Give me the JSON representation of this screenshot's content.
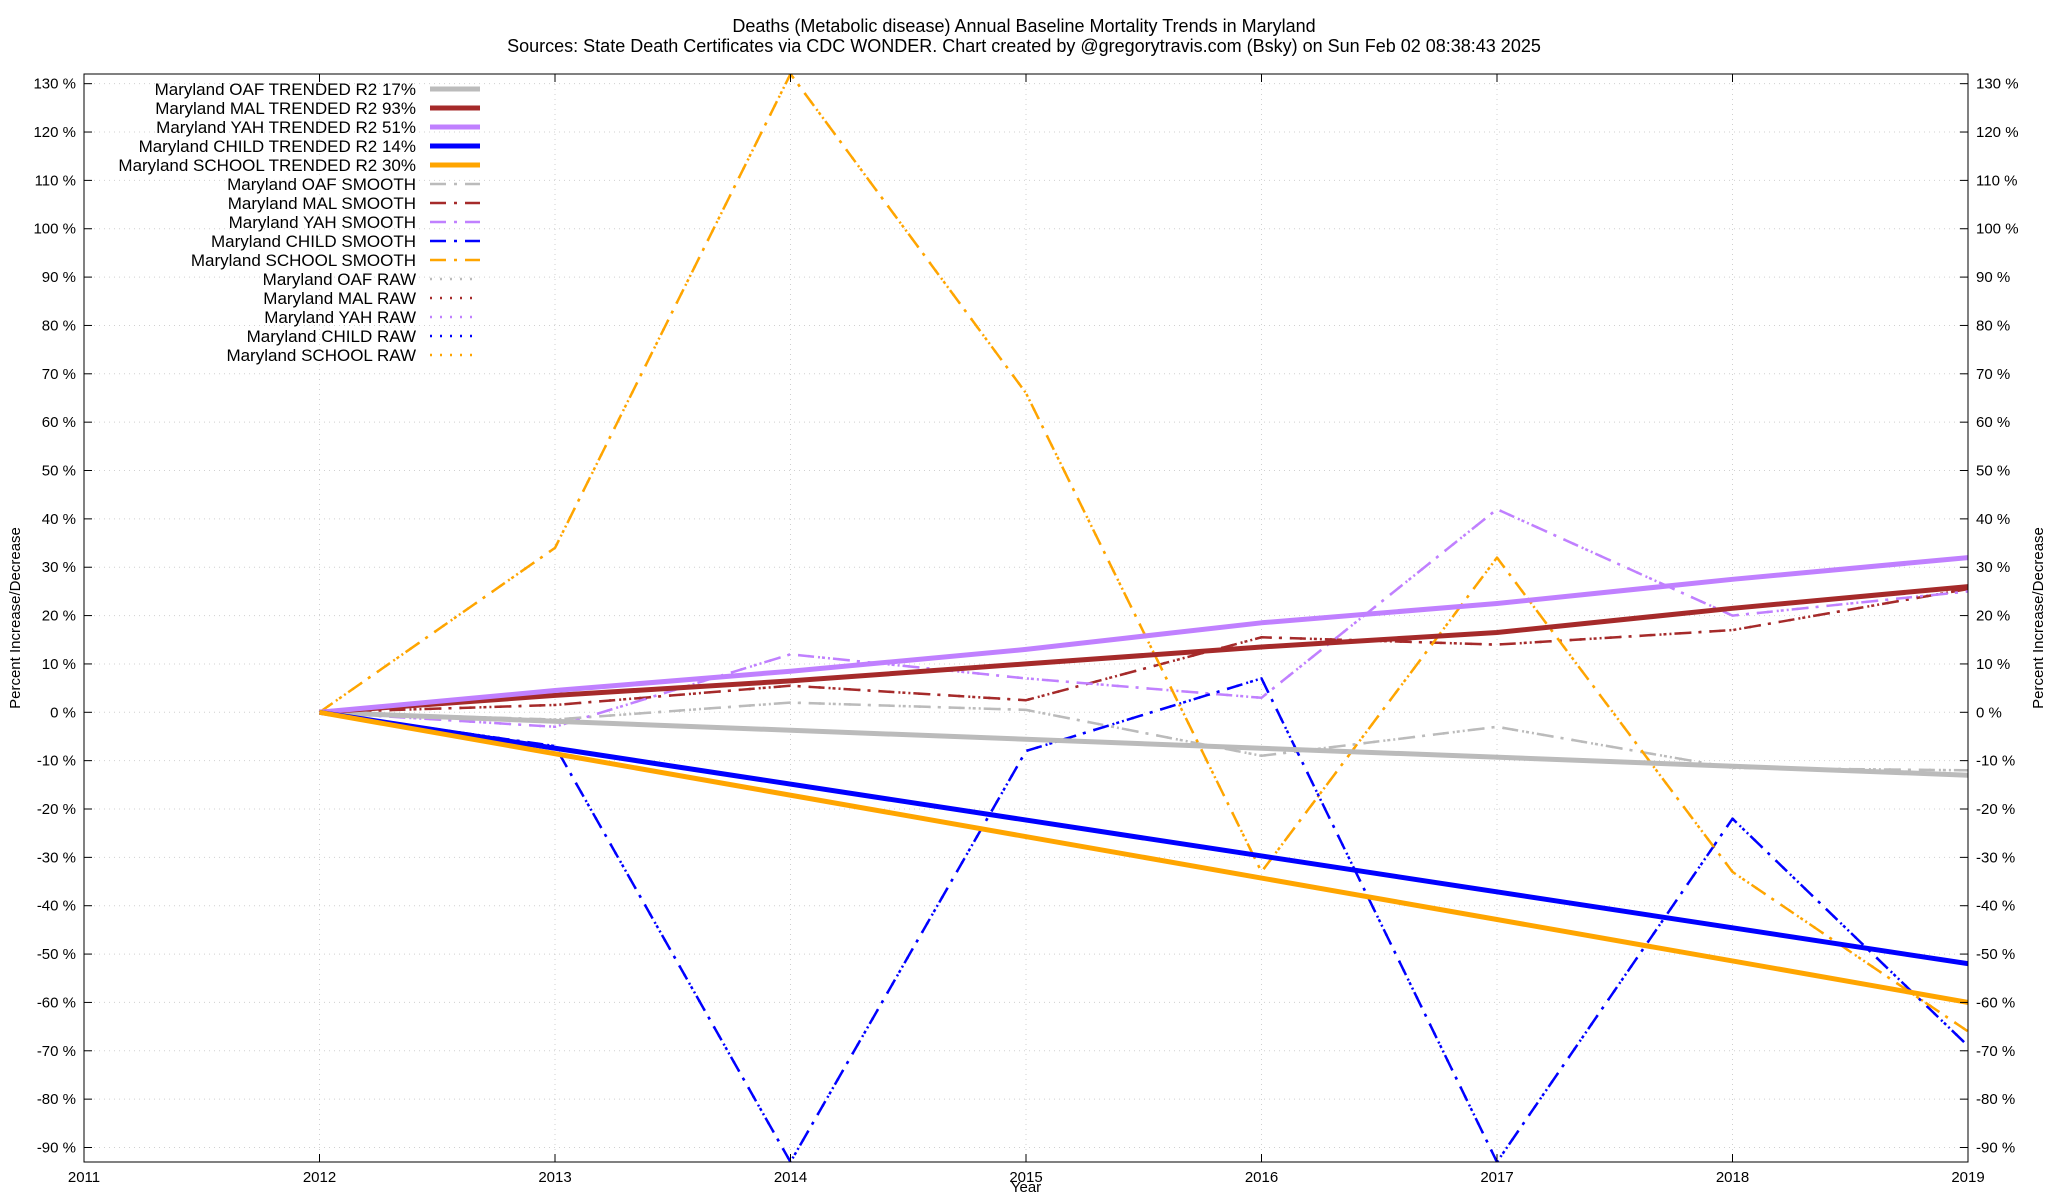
{
  "title_line1": "Deaths (Metabolic disease)  Annual Baseline Mortality Trends in Maryland",
  "title_line2": "Sources: State Death Certificates via CDC WONDER.               Chart created by @gregorytravis.com (Bsky) on Sun Feb 02 08:38:43 2025",
  "chart_data": {
    "type": "line",
    "xlabel": "Year",
    "ylabel": "Percent Increase/Decrease",
    "ylabel_right": "Percent Increase/Decrease",
    "xlim": [
      2011,
      2019
    ],
    "ylim": [
      -93,
      132
    ],
    "grid": true,
    "legend_position": "top-left",
    "x_ticks": [
      2011,
      2012,
      2013,
      2014,
      2015,
      2016,
      2017,
      2018,
      2019
    ],
    "x_tick_labels": [
      "2011",
      "2012",
      "2013",
      "2014",
      "2015",
      "2016",
      "2017",
      "2018",
      "2019"
    ],
    "y_ticks": [
      -90,
      -80,
      -70,
      -60,
      -50,
      -40,
      -30,
      -20,
      -10,
      0,
      10,
      20,
      30,
      40,
      50,
      60,
      70,
      80,
      90,
      100,
      110,
      120,
      130
    ],
    "y_tick_labels": [
      "-90 %",
      "-80 %",
      "-70 %",
      "-60 %",
      "-50 %",
      "-40 %",
      "-30 %",
      "-20 %",
      "-10 %",
      "0 %",
      "10 %",
      "20 %",
      "30 %",
      "40 %",
      "50 %",
      "60 %",
      "70 %",
      "80 %",
      "90 %",
      "100 %",
      "110 %",
      "120 %",
      "130 %"
    ],
    "series": [
      {
        "name": "Maryland OAF TRENDED R2  17%",
        "style": "trend",
        "color": "#bbbbbb",
        "x": [
          2012,
          2019
        ],
        "values": [
          0,
          -13
        ]
      },
      {
        "name": "Maryland MAL TRENDED R2  93%",
        "style": "trend",
        "color": "#a52a2a",
        "x": [
          2012,
          2013,
          2014,
          2015,
          2016,
          2017,
          2018,
          2019
        ],
        "values": [
          0,
          3.5,
          6.5,
          10,
          13.5,
          16.5,
          21.5,
          26
        ]
      },
      {
        "name": "Maryland YAH TRENDED R2  51%",
        "style": "trend",
        "color": "#c080ff",
        "x": [
          2012,
          2013,
          2014,
          2015,
          2016,
          2017,
          2018,
          2019
        ],
        "values": [
          0,
          4.5,
          8.5,
          13,
          18.5,
          22.5,
          27.5,
          32
        ]
      },
      {
        "name": "Maryland CHILD TRENDED R2  14%",
        "style": "trend",
        "color": "#0000ff",
        "x": [
          2012,
          2019
        ],
        "values": [
          0,
          -52
        ]
      },
      {
        "name": "Maryland SCHOOL TRENDED R2  30%",
        "style": "trend",
        "color": "#ffa500",
        "x": [
          2012,
          2019
        ],
        "values": [
          0,
          -60
        ]
      },
      {
        "name": "Maryland OAF SMOOTH",
        "style": "smooth",
        "color": "#bbbbbb",
        "x": [
          2012,
          2013,
          2014,
          2015,
          2016,
          2017,
          2018,
          2019
        ],
        "values": [
          0,
          -1.5,
          2,
          0.5,
          -9,
          -3,
          -11.5,
          -12
        ]
      },
      {
        "name": "Maryland MAL SMOOTH",
        "style": "smooth",
        "color": "#a52a2a",
        "x": [
          2012,
          2013,
          2014,
          2015,
          2016,
          2017,
          2018,
          2019
        ],
        "values": [
          0,
          1.5,
          5.5,
          2.5,
          15.5,
          14,
          17,
          25.5
        ]
      },
      {
        "name": "Maryland YAH SMOOTH",
        "style": "smooth",
        "color": "#c080ff",
        "x": [
          2012,
          2013,
          2014,
          2015,
          2016,
          2017,
          2018,
          2019
        ],
        "values": [
          0,
          -3,
          12,
          7,
          3,
          42,
          20,
          25
        ]
      },
      {
        "name": "Maryland CHILD SMOOTH",
        "style": "smooth",
        "color": "#0000ff",
        "x": [
          2012,
          2013,
          2014,
          2015,
          2016,
          2017,
          2018,
          2019
        ],
        "values": [
          0,
          -7,
          -93,
          -8,
          7,
          -93,
          -22,
          -69
        ]
      },
      {
        "name": "Maryland SCHOOL SMOOTH",
        "style": "smooth",
        "color": "#ffa500",
        "x": [
          2012,
          2013,
          2014,
          2015,
          2016,
          2017,
          2018,
          2019
        ],
        "values": [
          0,
          34,
          132,
          66,
          -33,
          32,
          -33,
          -66
        ]
      },
      {
        "name": "Maryland OAF RAW",
        "style": "raw",
        "color": "#bbbbbb",
        "x": [
          2012,
          2013,
          2014,
          2015,
          2016,
          2017,
          2018,
          2019
        ],
        "values": [
          0,
          -1.5,
          2,
          0.5,
          -9,
          -3,
          -11.5,
          -12
        ]
      },
      {
        "name": "Maryland MAL RAW",
        "style": "raw",
        "color": "#a52a2a",
        "x": [
          2012,
          2013,
          2014,
          2015,
          2016,
          2017,
          2018,
          2019
        ],
        "values": [
          0,
          1.5,
          5.5,
          2.5,
          15.5,
          14,
          17,
          25.5
        ]
      },
      {
        "name": "Maryland YAH RAW",
        "style": "raw",
        "color": "#c080ff",
        "x": [
          2012,
          2013,
          2014,
          2015,
          2016,
          2017,
          2018,
          2019
        ],
        "values": [
          0,
          -3,
          12,
          7,
          3,
          42,
          20,
          25
        ]
      },
      {
        "name": "Maryland CHILD RAW",
        "style": "raw",
        "color": "#0000ff",
        "x": [
          2012,
          2013,
          2014,
          2015,
          2016,
          2017,
          2018,
          2019
        ],
        "values": [
          0,
          -7,
          -93,
          -8,
          7,
          -93,
          -22,
          -69
        ]
      },
      {
        "name": "Maryland SCHOOL RAW",
        "style": "raw",
        "color": "#ffa500",
        "x": [
          2012,
          2013,
          2014,
          2015,
          2016,
          2017,
          2018,
          2019
        ],
        "values": [
          0,
          34,
          132,
          66,
          -33,
          32,
          -33,
          -66
        ]
      }
    ]
  }
}
